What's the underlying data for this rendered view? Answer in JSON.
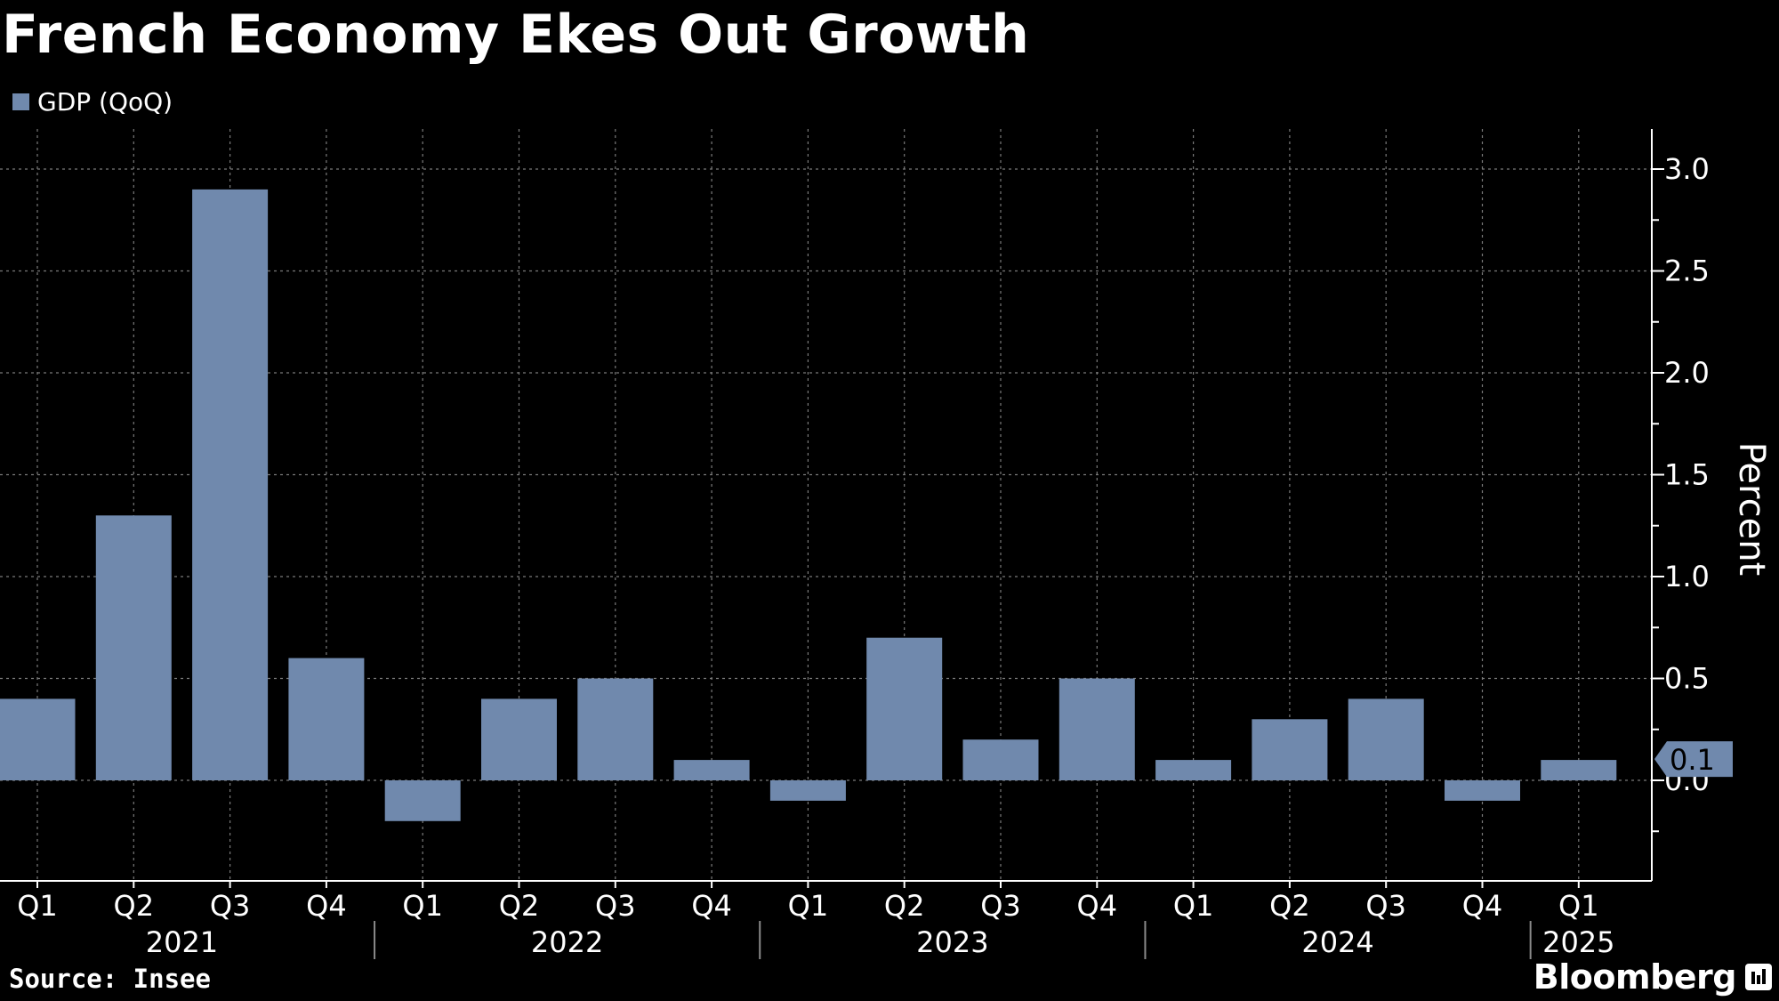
{
  "title": "French Economy Ekes Out Growth",
  "source": "Source: Insee",
  "brand": "Bloomberg",
  "colors": {
    "background": "#000000",
    "bar": "#7089ad",
    "grid": "#7a7a7a",
    "text": "#ffffff"
  },
  "chart_data": {
    "type": "bar",
    "title": "French Economy Ekes Out Growth",
    "categories": [
      "Q1 2021",
      "Q2 2021",
      "Q3 2021",
      "Q4 2021",
      "Q1 2022",
      "Q2 2022",
      "Q3 2022",
      "Q4 2022",
      "Q1 2023",
      "Q2 2023",
      "Q3 2023",
      "Q4 2023",
      "Q1 2024",
      "Q2 2024",
      "Q3 2024",
      "Q4 2024",
      "Q1 2025"
    ],
    "quarter_labels": [
      "Q1",
      "Q2",
      "Q3",
      "Q4",
      "Q1",
      "Q2",
      "Q3",
      "Q4",
      "Q1",
      "Q2",
      "Q3",
      "Q4",
      "Q1",
      "Q2",
      "Q3",
      "Q4",
      "Q1"
    ],
    "year_labels": [
      "2021",
      "2022",
      "2023",
      "2024",
      "2025"
    ],
    "series": [
      {
        "name": "GDP (QoQ)",
        "values": [
          0.4,
          1.3,
          2.9,
          0.6,
          -0.2,
          0.4,
          0.5,
          0.1,
          -0.1,
          0.7,
          0.2,
          0.5,
          0.1,
          0.3,
          0.4,
          -0.1,
          0.1
        ]
      }
    ],
    "ylabel": "Percent",
    "ylim": [
      -0.5,
      3.2
    ],
    "yticks": [
      "0.0",
      "0.5",
      "1.0",
      "1.5",
      "2.0",
      "2.5",
      "3.0"
    ],
    "last_value_label": "0.1",
    "legend_position": "top-left",
    "grid": true
  }
}
